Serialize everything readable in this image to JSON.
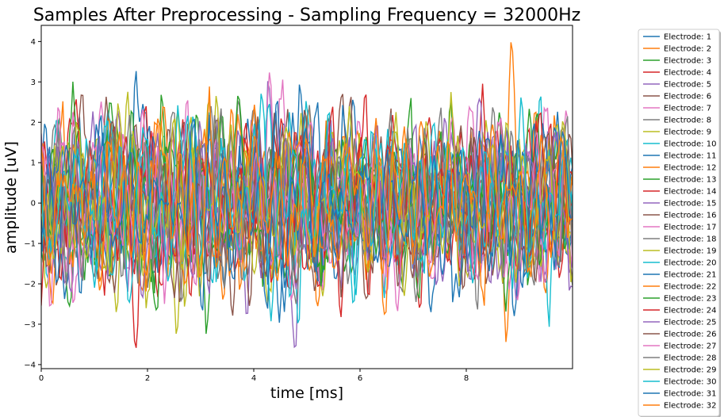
{
  "chart_data": {
    "type": "line",
    "title": "Samples After Preprocessing - Sampling Frequency = 32000Hz",
    "xlabel": "time [ms]",
    "ylabel": "amplitude [uV]",
    "xlim": [
      0,
      10
    ],
    "ylim": [
      -4.1,
      4.4
    ],
    "xticks": [
      0,
      2,
      4,
      6,
      8
    ],
    "yticks": [
      -4,
      -3,
      -2,
      -1,
      0,
      1,
      2,
      3,
      4
    ],
    "grid": false,
    "legend_position": "outside-right",
    "sample_count": 320,
    "series": [
      {
        "name": "Electrode: 1",
        "color": "#1f77b4",
        "peaks": [
          {
            "x": 1.78,
            "y": 3.3
          }
        ]
      },
      {
        "name": "Electrode: 2",
        "color": "#ff7f0e",
        "peaks": [
          {
            "x": 8.85,
            "y": 4.05
          }
        ]
      },
      {
        "name": "Electrode: 3",
        "color": "#2ca02c",
        "peaks": [
          {
            "x": 1.3,
            "y": 2.55
          }
        ]
      },
      {
        "name": "Electrode: 4",
        "color": "#d62728",
        "peaks": [
          {
            "x": 1.78,
            "y": -3.6
          }
        ]
      },
      {
        "name": "Electrode: 5",
        "color": "#9467bd",
        "peaks": [
          {
            "x": 4.78,
            "y": -3.7
          }
        ]
      },
      {
        "name": "Electrode: 6",
        "color": "#8c564b",
        "peaks": [
          {
            "x": 3.6,
            "y": -2.8
          }
        ]
      },
      {
        "name": "Electrode: 7",
        "color": "#e377c2",
        "peaks": [
          {
            "x": 4.3,
            "y": 3.25
          }
        ]
      },
      {
        "name": "Electrode: 8",
        "color": "#7f7f7f",
        "peaks": [
          {
            "x": 3.2,
            "y": 2.4
          }
        ]
      },
      {
        "name": "Electrode: 9",
        "color": "#bcbd22",
        "peaks": [
          {
            "x": 2.55,
            "y": -3.3
          }
        ]
      },
      {
        "name": "Electrode: 10",
        "color": "#17becf",
        "peaks": [
          {
            "x": 1.25,
            "y": 2.3
          }
        ]
      },
      {
        "name": "Electrode: 11",
        "color": "#1f77b4",
        "peaks": [
          {
            "x": 8.9,
            "y": -2.8
          }
        ]
      },
      {
        "name": "Electrode: 12",
        "color": "#ff7f0e",
        "peaks": [
          {
            "x": 8.75,
            "y": -3.45
          }
        ]
      },
      {
        "name": "Electrode: 13",
        "color": "#2ca02c",
        "peaks": [
          {
            "x": 3.4,
            "y": 2.3
          }
        ]
      },
      {
        "name": "Electrode: 14",
        "color": "#d62728",
        "peaks": [
          {
            "x": 0.65,
            "y": 2.6
          }
        ]
      },
      {
        "name": "Electrode: 15",
        "color": "#9467bd",
        "peaks": [
          {
            "x": 0.45,
            "y": -2.0
          }
        ]
      },
      {
        "name": "Electrode: 16",
        "color": "#8c564b",
        "peaks": [
          {
            "x": 4.0,
            "y": 2.3
          }
        ]
      },
      {
        "name": "Electrode: 17",
        "color": "#e377c2",
        "peaks": [
          {
            "x": 8.1,
            "y": 2.3
          }
        ]
      },
      {
        "name": "Electrode: 18",
        "color": "#7f7f7f",
        "peaks": [
          {
            "x": 4.0,
            "y": 2.4
          }
        ]
      },
      {
        "name": "Electrode: 19",
        "color": "#bcbd22",
        "peaks": [
          {
            "x": 3.3,
            "y": 2.7
          }
        ]
      },
      {
        "name": "Electrode: 20",
        "color": "#17becf",
        "peaks": [
          {
            "x": 1.0,
            "y": -2.1
          }
        ]
      },
      {
        "name": "Electrode: 21",
        "color": "#1f77b4",
        "peaks": [
          {
            "x": 5.2,
            "y": 2.5
          }
        ]
      },
      {
        "name": "Electrode: 22",
        "color": "#ff7f0e",
        "peaks": [
          {
            "x": 3.7,
            "y": 2.2
          }
        ]
      },
      {
        "name": "Electrode: 23",
        "color": "#2ca02c",
        "peaks": [
          {
            "x": 7.7,
            "y": 2.6
          }
        ]
      },
      {
        "name": "Electrode: 24",
        "color": "#d62728",
        "peaks": [
          {
            "x": 6.1,
            "y": 2.8
          }
        ]
      },
      {
        "name": "Electrode: 25",
        "color": "#9467bd",
        "peaks": [
          {
            "x": 1.9,
            "y": -2.4
          }
        ]
      },
      {
        "name": "Electrode: 26",
        "color": "#8c564b",
        "peaks": [
          {
            "x": 9.95,
            "y": 1.75
          }
        ]
      },
      {
        "name": "Electrode: 27",
        "color": "#e377c2",
        "peaks": [
          {
            "x": 6.7,
            "y": -2.7
          }
        ]
      },
      {
        "name": "Electrode: 28",
        "color": "#7f7f7f",
        "peaks": [
          {
            "x": 4.8,
            "y": -2.5
          }
        ]
      },
      {
        "name": "Electrode: 29",
        "color": "#bcbd22",
        "peaks": [
          {
            "x": 5.8,
            "y": 2.4
          }
        ]
      },
      {
        "name": "Electrode: 30",
        "color": "#17becf",
        "peaks": [
          {
            "x": 2.75,
            "y": 2.2
          }
        ]
      },
      {
        "name": "Electrode: 31",
        "color": "#1f77b4",
        "peaks": [
          {
            "x": 7.75,
            "y": -2.5
          }
        ]
      },
      {
        "name": "Electrode: 32",
        "color": "#ff7f0e",
        "peaks": [
          {
            "x": 2.2,
            "y": 2.1
          }
        ]
      }
    ]
  }
}
